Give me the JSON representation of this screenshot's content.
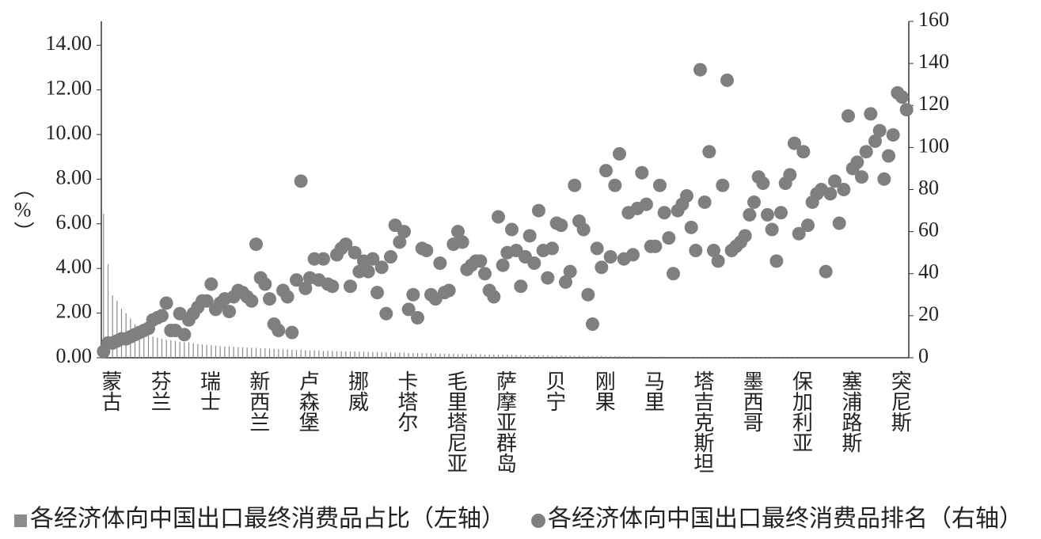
{
  "chart_data": {
    "type": "bar_scatter",
    "axis_label": "（%）",
    "categories": [
      "蒙古",
      null,
      null,
      null,
      null,
      null,
      null,
      null,
      null,
      null,
      null,
      "芬兰",
      null,
      null,
      null,
      null,
      null,
      null,
      null,
      null,
      null,
      null,
      "瑞士",
      null,
      null,
      null,
      null,
      null,
      null,
      null,
      null,
      null,
      null,
      "新西兰",
      null,
      null,
      null,
      null,
      null,
      null,
      null,
      null,
      null,
      null,
      "卢森堡",
      null,
      null,
      null,
      null,
      null,
      null,
      null,
      null,
      null,
      null,
      "挪威",
      null,
      null,
      null,
      null,
      null,
      null,
      null,
      null,
      null,
      null,
      "卡塔尔",
      null,
      null,
      null,
      null,
      null,
      null,
      null,
      null,
      null,
      null,
      "毛里塔尼亚",
      null,
      null,
      null,
      null,
      null,
      null,
      null,
      null,
      null,
      null,
      "萨摩亚群岛",
      null,
      null,
      null,
      null,
      null,
      null,
      null,
      null,
      null,
      null,
      "贝宁",
      null,
      null,
      null,
      null,
      null,
      null,
      null,
      null,
      null,
      null,
      "刚果",
      null,
      null,
      null,
      null,
      null,
      null,
      null,
      null,
      null,
      null,
      "马里",
      null,
      null,
      null,
      null,
      null,
      null,
      null,
      null,
      null,
      null,
      "塔吉克斯坦",
      null,
      null,
      null,
      null,
      null,
      null,
      null,
      null,
      null,
      null,
      "墨西哥",
      null,
      null,
      null,
      null,
      null,
      null,
      null,
      null,
      null,
      null,
      "保加利亚",
      null,
      null,
      null,
      null,
      null,
      null,
      null,
      null,
      null,
      null,
      "塞浦路斯",
      null,
      null,
      null,
      null,
      null,
      null,
      null,
      null,
      null,
      null,
      "突尼斯",
      null,
      null,
      null
    ],
    "series": [
      {
        "name": "各经济体向中国出口最终消费品占比（左轴）",
        "color": "#8c8c8c",
        "values": [
          6.45,
          4.2,
          2.8,
          2.55,
          2.2,
          2.0,
          1.75,
          1.5,
          1.3,
          1.15,
          1.05,
          0.95,
          0.9,
          0.85,
          0.8,
          0.78,
          0.75,
          0.72,
          0.7,
          0.68,
          0.65,
          0.62,
          0.6,
          0.58,
          0.56,
          0.54,
          0.52,
          0.51,
          0.5,
          0.49,
          0.48,
          0.47,
          0.46,
          0.45,
          0.44,
          0.43,
          0.42,
          0.41,
          0.4,
          0.39,
          0.38,
          0.37,
          0.36,
          0.35,
          0.35,
          0.34,
          0.33,
          0.33,
          0.32,
          0.31,
          0.31,
          0.3,
          0.3,
          0.29,
          0.29,
          0.28,
          0.28,
          0.27,
          0.27,
          0.26,
          0.26,
          0.25,
          0.25,
          0.24,
          0.24,
          0.23,
          0.23,
          0.22,
          0.22,
          0.21,
          0.21,
          0.2,
          0.2,
          0.2,
          0.19,
          0.19,
          0.18,
          0.18,
          0.18,
          0.17,
          0.17,
          0.17,
          0.16,
          0.16,
          0.16,
          0.15,
          0.15,
          0.15,
          0.14,
          0.14,
          0.14,
          0.13,
          0.13,
          0.13,
          0.12,
          0.12,
          0.12,
          0.11,
          0.11,
          0.11,
          0.1,
          0.1,
          0.1,
          0.1,
          0.09,
          0.09,
          0.09,
          0.09,
          0.08,
          0.08,
          0.08,
          0.08,
          0.07,
          0.07,
          0.07,
          0.07,
          0.06,
          0.06,
          0.06,
          0.06,
          0.06,
          0.05,
          0.05,
          0.05,
          0.05,
          0.05,
          0.04,
          0.04,
          0.04,
          0.04,
          0.04,
          0.04,
          0.03,
          0.03,
          0.03,
          0.03,
          0.03,
          0.03,
          0.03,
          0.02,
          0.02,
          0.02,
          0.02,
          0.02,
          0.02,
          0.02,
          0.02,
          0.02,
          0.02,
          0.02,
          0.02,
          0.02,
          0.02,
          0.02,
          0.02,
          0.01,
          0.01,
          0.01,
          0.01,
          0.01,
          0.01,
          0.01,
          0.01,
          0.01,
          0.01,
          0.01,
          0.01,
          0.01,
          0.01,
          0.01,
          0.01,
          0.01,
          0.01,
          0.01,
          0.01,
          0.01,
          0.01,
          0.01,
          0.01,
          0.01
        ]
      },
      {
        "name": "各经济体向中国出口最终消费品排名（右轴）",
        "color": "#7f7f7f",
        "axis": "y2",
        "values": [
          3,
          7,
          7,
          8,
          9,
          9,
          10,
          11,
          12,
          13,
          14,
          18,
          19,
          20,
          26,
          13,
          13,
          21,
          11,
          18,
          21,
          24,
          27,
          27,
          35,
          23,
          26,
          28,
          22,
          29,
          32,
          31,
          29,
          27,
          54,
          38,
          35,
          28,
          16,
          13,
          32,
          29,
          12,
          37,
          84,
          33,
          38,
          47,
          37,
          47,
          35,
          34,
          49,
          52,
          54,
          34,
          50,
          41,
          46,
          41,
          47,
          31,
          43,
          21,
          48,
          63,
          55,
          60,
          23,
          30,
          19,
          52,
          51,
          30,
          28,
          45,
          31,
          32,
          54,
          60,
          55,
          42,
          44,
          46,
          46,
          40,
          32,
          29,
          67,
          44,
          50,
          61,
          51,
          34,
          48,
          58,
          45,
          70,
          51,
          38,
          52,
          64,
          63,
          36,
          41,
          82,
          65,
          61,
          30,
          16,
          52,
          43,
          89,
          48,
          82,
          97,
          47,
          69,
          49,
          71,
          88,
          73,
          53,
          53,
          82,
          69,
          57,
          40,
          70,
          73,
          77,
          62,
          51,
          137,
          74,
          98,
          51,
          46,
          82,
          132,
          51,
          53,
          55,
          58,
          68,
          74,
          86,
          83,
          68,
          61,
          46,
          69,
          83,
          87,
          102,
          59,
          98,
          63,
          74,
          78,
          80,
          41,
          78,
          84,
          64,
          80,
          115,
          90,
          93,
          86,
          98,
          116,
          103,
          108,
          85,
          96,
          106,
          126,
          124,
          118
        ]
      }
    ],
    "ylim": [
      0,
      15.07
    ],
    "yticks": [
      {
        "value": 0,
        "label": "0.00"
      },
      {
        "value": 2,
        "label": "2.00"
      },
      {
        "value": 4,
        "label": "4.00"
      },
      {
        "value": 6,
        "label": "6.00"
      },
      {
        "value": 8,
        "label": "8.00"
      },
      {
        "value": 10,
        "label": "10.00"
      },
      {
        "value": 12,
        "label": "12.00"
      },
      {
        "value": 14,
        "label": "14.00"
      }
    ],
    "y2lim": [
      0,
      160
    ],
    "y2ticks": [
      0,
      20,
      40,
      60,
      80,
      100,
      120,
      140,
      160
    ]
  }
}
